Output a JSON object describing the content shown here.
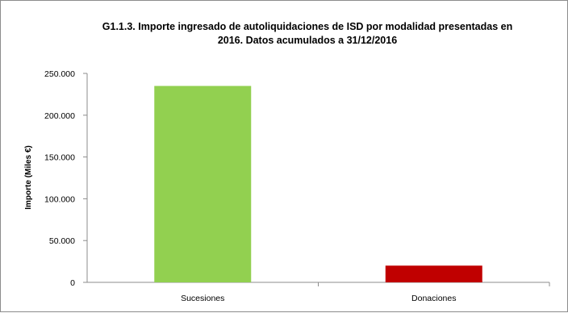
{
  "chart_data": {
    "type": "bar",
    "title_lines": [
      "G1.1.3. Importe ingresado de autoliquidaciones de ISD por modalidad presentadas en",
      "2016. Datos acumulados a 31/12/2016"
    ],
    "xlabel": "",
    "ylabel": "Importe (Miles €)",
    "categories": [
      "Sucesiones",
      "Donaciones"
    ],
    "values": [
      235000,
      20000
    ],
    "bar_colors": [
      "#92d050",
      "#c00000"
    ],
    "ylim": [
      0,
      250000
    ],
    "yticks": [
      0,
      50000,
      100000,
      150000,
      200000,
      250000
    ],
    "ytick_labels": [
      "0",
      "50.000",
      "100.000",
      "150.000",
      "200.000",
      "250.000"
    ],
    "grid": false,
    "legend": "none"
  }
}
